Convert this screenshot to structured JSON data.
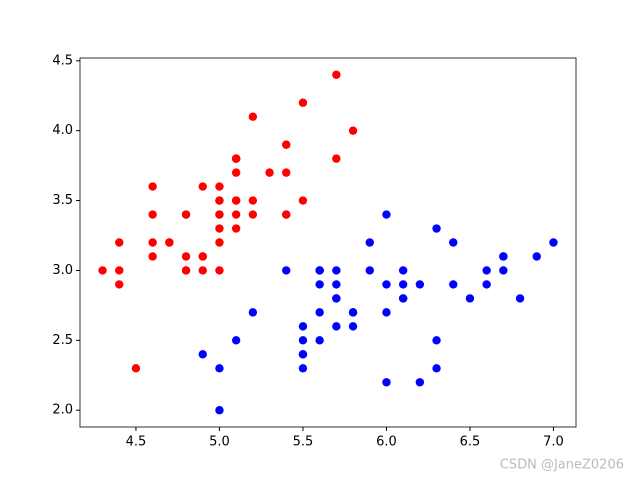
{
  "chart_data": {
    "type": "scatter",
    "xlim": [
      4.165,
      7.135
    ],
    "ylim": [
      1.88,
      4.52
    ],
    "xticks": [
      4.5,
      {
        "value": 5,
        "label": "5.0"
      },
      5.5,
      {
        "value": 6,
        "label": "6.0"
      },
      6.5,
      {
        "value": 7,
        "label": "7.0"
      }
    ],
    "yticks": [
      {
        "value": 2,
        "label": "2.0"
      },
      2.5,
      {
        "value": 3,
        "label": "3.0"
      },
      3.5,
      {
        "value": 4,
        "label": "4.0"
      },
      4.5
    ],
    "series": [
      {
        "color": "#ff0000",
        "x": [
          5.1,
          4.9,
          4.7,
          4.6,
          5.0,
          5.4,
          4.6,
          5.0,
          4.4,
          4.9,
          5.4,
          4.8,
          4.8,
          4.3,
          5.8,
          5.7,
          5.4,
          5.1,
          5.7,
          5.1,
          5.4,
          5.1,
          4.6,
          5.1,
          4.8,
          5.0,
          5.0,
          5.2,
          5.2,
          4.7,
          4.8,
          5.4,
          5.2,
          5.5,
          4.9,
          5.0,
          5.5,
          4.9,
          4.4,
          5.1,
          5.0,
          4.5,
          4.4,
          5.0,
          5.1,
          4.8,
          5.1,
          4.6,
          5.3,
          5.0
        ],
        "values": [
          3.5,
          3.0,
          3.2,
          3.1,
          3.6,
          3.9,
          3.4,
          3.4,
          2.9,
          3.1,
          3.7,
          3.4,
          3.0,
          3.0,
          4.0,
          4.4,
          3.9,
          3.5,
          3.8,
          3.8,
          3.4,
          3.7,
          3.6,
          3.3,
          3.4,
          3.0,
          3.4,
          3.5,
          3.4,
          3.2,
          3.1,
          3.4,
          4.1,
          4.2,
          3.1,
          3.2,
          3.5,
          3.6,
          3.0,
          3.4,
          3.5,
          2.3,
          3.2,
          3.5,
          3.8,
          3.0,
          3.8,
          3.2,
          3.7,
          3.3
        ]
      },
      {
        "color": "#0000ff",
        "x": [
          7.0,
          6.4,
          6.9,
          5.5,
          6.5,
          5.7,
          6.3,
          4.9,
          6.6,
          5.2,
          5.0,
          5.9,
          6.0,
          6.1,
          5.6,
          6.7,
          5.6,
          5.8,
          6.2,
          5.6,
          5.9,
          6.1,
          6.3,
          6.1,
          6.4,
          6.6,
          6.8,
          6.7,
          6.0,
          5.7,
          5.5,
          5.5,
          5.8,
          6.0,
          5.4,
          6.0,
          6.7,
          6.3,
          5.6,
          5.5,
          5.5,
          6.1,
          5.8,
          5.0,
          5.6,
          5.7,
          5.7,
          6.2,
          5.1,
          5.7
        ],
        "values": [
          3.2,
          3.2,
          3.1,
          2.3,
          2.8,
          2.8,
          3.3,
          2.4,
          2.9,
          2.7,
          2.0,
          3.0,
          2.2,
          2.9,
          2.9,
          3.1,
          3.0,
          2.7,
          2.2,
          2.5,
          3.2,
          2.8,
          2.5,
          2.8,
          2.9,
          3.0,
          2.8,
          3.0,
          2.9,
          2.6,
          2.4,
          2.4,
          2.7,
          2.7,
          3.0,
          3.4,
          3.1,
          2.3,
          3.0,
          2.5,
          2.6,
          3.0,
          2.6,
          2.3,
          2.7,
          3.0,
          2.9,
          2.9,
          2.5,
          2.8
        ]
      }
    ]
  },
  "watermark": "CSDN @JaneZ0206"
}
